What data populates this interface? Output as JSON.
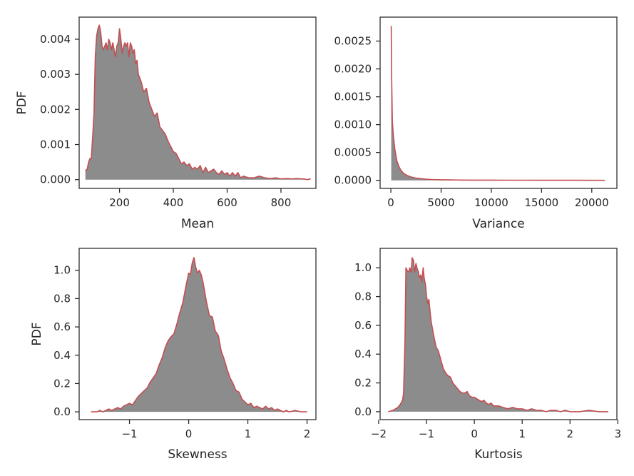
{
  "figure": {
    "colors": {
      "line": "#c44e52",
      "fill": "#8c8c8c",
      "axes": "#262626"
    }
  },
  "chart_data": [
    {
      "type": "area",
      "title": "",
      "xlabel": "Mean",
      "ylabel": "PDF",
      "xlim": [
        50,
        930
      ],
      "ylim": [
        -0.00025,
        0.00463
      ],
      "xticks": [
        200,
        400,
        600,
        800
      ],
      "xtick_labels": [
        "200",
        "400",
        "600",
        "800"
      ],
      "yticks": [
        0.0,
        0.001,
        0.002,
        0.003,
        0.004
      ],
      "ytick_labels": [
        "0.000",
        "0.001",
        "0.002",
        "0.003",
        "0.004"
      ],
      "x": [
        73,
        80,
        85,
        90,
        95,
        100,
        105,
        110,
        115,
        120,
        125,
        130,
        135,
        140,
        145,
        150,
        155,
        160,
        165,
        170,
        175,
        180,
        185,
        190,
        195,
        200,
        205,
        210,
        215,
        220,
        225,
        230,
        235,
        240,
        245,
        250,
        255,
        260,
        265,
        270,
        275,
        280,
        290,
        300,
        310,
        320,
        330,
        340,
        350,
        360,
        370,
        380,
        390,
        400,
        410,
        420,
        430,
        440,
        450,
        460,
        470,
        480,
        490,
        500,
        510,
        520,
        530,
        540,
        550,
        560,
        570,
        580,
        590,
        600,
        610,
        620,
        630,
        640,
        650,
        660,
        680,
        700,
        720,
        740,
        760,
        780,
        800,
        820,
        840,
        860,
        880,
        900,
        910
      ],
      "y": [
        0.00025,
        0.0003,
        0.0005,
        0.0006,
        0.0006,
        0.0012,
        0.0019,
        0.0035,
        0.0041,
        0.0043,
        0.0044,
        0.0042,
        0.0038,
        0.0037,
        0.0038,
        0.0039,
        0.0037,
        0.004,
        0.0039,
        0.0037,
        0.0039,
        0.0037,
        0.0035,
        0.0038,
        0.0039,
        0.0043,
        0.004,
        0.0036,
        0.0038,
        0.0039,
        0.0038,
        0.0039,
        0.0035,
        0.0039,
        0.0038,
        0.0036,
        0.0037,
        0.0033,
        0.0034,
        0.003,
        0.0029,
        0.0028,
        0.0025,
        0.0026,
        0.0022,
        0.002,
        0.0018,
        0.0019,
        0.0015,
        0.0014,
        0.0013,
        0.0011,
        0.00095,
        0.0008,
        0.00075,
        0.0006,
        0.00045,
        0.0005,
        0.0004,
        0.00045,
        0.0003,
        0.00035,
        0.0003,
        0.0004,
        0.0002,
        0.00035,
        0.0002,
        0.00025,
        0.0003,
        0.0002,
        0.00015,
        0.00025,
        0.00015,
        0.0002,
        0.0001,
        0.0002,
        0.0001,
        0.0002,
        5e-05,
        0.0001,
        5e-05,
        5e-05,
        0.0001,
        5e-05,
        3e-05,
        5e-05,
        2e-05,
        3e-05,
        2e-05,
        3e-05,
        2e-05,
        0.0,
        3e-05
      ]
    },
    {
      "type": "area",
      "title": "",
      "xlabel": "Variance",
      "ylabel": "",
      "xlim": [
        -1070,
        22500
      ],
      "ylim": [
        -0.000145,
        0.00293
      ],
      "xticks": [
        0,
        5000,
        10000,
        15000,
        20000
      ],
      "xtick_labels": [
        "0",
        "5000",
        "10000",
        "15000",
        "20000"
      ],
      "yticks": [
        0.0,
        0.0005,
        0.001,
        0.0015,
        0.002,
        0.0025
      ],
      "ytick_labels": [
        "0.0000",
        "0.0005",
        "0.0010",
        "0.0015",
        "0.0020",
        "0.0025"
      ],
      "x": [
        35,
        75,
        150,
        250,
        400,
        600,
        800,
        1000,
        1300,
        1600,
        2000,
        2500,
        3000,
        3500,
        4000,
        5000,
        6000,
        7000,
        8000,
        10000,
        12000,
        15000,
        18000,
        21300
      ],
      "y": [
        0.00277,
        0.0019,
        0.00105,
        0.0008,
        0.00055,
        0.00035,
        0.00025,
        0.00018,
        0.00012,
        9e-05,
        6e-05,
        4e-05,
        3e-05,
        2e-05,
        1.5e-05,
        1e-05,
        7e-06,
        5e-06,
        4e-06,
        3e-06,
        2e-06,
        1e-06,
        1e-06,
        0.0
      ]
    },
    {
      "type": "area",
      "title": "",
      "xlabel": "Skewness",
      "ylabel": "PDF",
      "xlim": [
        -1.85,
        2.15
      ],
      "ylim": [
        -0.055,
        1.155
      ],
      "xticks": [
        -1,
        0,
        1,
        2
      ],
      "xtick_labels": [
        "−1",
        "0",
        "1",
        "2"
      ],
      "yticks": [
        0.0,
        0.2,
        0.4,
        0.6,
        0.8,
        1.0
      ],
      "ytick_labels": [
        "0.0",
        "0.2",
        "0.4",
        "0.6",
        "0.8",
        "1.0"
      ],
      "x": [
        -1.65,
        -1.55,
        -1.5,
        -1.45,
        -1.4,
        -1.35,
        -1.3,
        -1.25,
        -1.2,
        -1.15,
        -1.1,
        -1.05,
        -1.0,
        -0.95,
        -0.9,
        -0.85,
        -0.8,
        -0.75,
        -0.7,
        -0.65,
        -0.6,
        -0.55,
        -0.5,
        -0.45,
        -0.4,
        -0.35,
        -0.3,
        -0.25,
        -0.2,
        -0.15,
        -0.1,
        -0.05,
        0.0,
        0.03,
        0.06,
        0.09,
        0.12,
        0.15,
        0.18,
        0.21,
        0.24,
        0.27,
        0.3,
        0.35,
        0.4,
        0.45,
        0.5,
        0.55,
        0.6,
        0.65,
        0.7,
        0.75,
        0.8,
        0.85,
        0.9,
        0.95,
        1.0,
        1.05,
        1.1,
        1.15,
        1.2,
        1.25,
        1.3,
        1.35,
        1.4,
        1.45,
        1.5,
        1.55,
        1.6,
        1.65,
        1.7,
        1.8,
        1.9,
        2.0
      ],
      "y": [
        0.0,
        0.0,
        0.01,
        0.0,
        0.01,
        0.02,
        0.01,
        0.02,
        0.03,
        0.02,
        0.04,
        0.05,
        0.06,
        0.05,
        0.08,
        0.11,
        0.13,
        0.15,
        0.17,
        0.21,
        0.24,
        0.27,
        0.33,
        0.38,
        0.45,
        0.5,
        0.53,
        0.55,
        0.62,
        0.7,
        0.77,
        0.88,
        0.98,
        0.97,
        1.05,
        1.09,
        1.02,
        0.98,
        1.0,
        0.97,
        0.92,
        0.85,
        0.78,
        0.68,
        0.67,
        0.57,
        0.54,
        0.43,
        0.37,
        0.3,
        0.24,
        0.2,
        0.15,
        0.14,
        0.09,
        0.07,
        0.05,
        0.06,
        0.03,
        0.04,
        0.03,
        0.02,
        0.04,
        0.02,
        0.03,
        0.01,
        0.02,
        0.01,
        0.0,
        0.01,
        0.0,
        0.01,
        0.0,
        0.0
      ]
    },
    {
      "type": "area",
      "title": "",
      "xlabel": "Kurtosis",
      "ylabel": "",
      "xlim": [
        -1.97,
        2.98
      ],
      "ylim": [
        -0.055,
        1.135
      ],
      "xticks": [
        -2,
        -1,
        0,
        1,
        2,
        3
      ],
      "xtick_labels": [
        "−2",
        "−1",
        "0",
        "1",
        "2",
        "3"
      ],
      "yticks": [
        0.0,
        0.2,
        0.4,
        0.6,
        0.8,
        1.0
      ],
      "ytick_labels": [
        "0.0",
        "0.2",
        "0.4",
        "0.6",
        "0.8",
        "1.0"
      ],
      "x": [
        -1.8,
        -1.7,
        -1.6,
        -1.55,
        -1.5,
        -1.48,
        -1.45,
        -1.43,
        -1.4,
        -1.37,
        -1.35,
        -1.32,
        -1.3,
        -1.27,
        -1.25,
        -1.22,
        -1.2,
        -1.17,
        -1.15,
        -1.12,
        -1.1,
        -1.07,
        -1.05,
        -1.02,
        -1.0,
        -0.97,
        -0.95,
        -0.92,
        -0.9,
        -0.85,
        -0.8,
        -0.75,
        -0.7,
        -0.65,
        -0.6,
        -0.55,
        -0.5,
        -0.45,
        -0.4,
        -0.35,
        -0.3,
        -0.25,
        -0.2,
        -0.15,
        -0.1,
        -0.05,
        0.0,
        0.05,
        0.1,
        0.15,
        0.2,
        0.25,
        0.3,
        0.35,
        0.4,
        0.5,
        0.6,
        0.7,
        0.8,
        0.9,
        1.0,
        1.1,
        1.2,
        1.3,
        1.4,
        1.5,
        1.6,
        1.7,
        1.8,
        1.9,
        2.0,
        2.2,
        2.4,
        2.6,
        2.8
      ],
      "y": [
        0.0,
        0.01,
        0.03,
        0.05,
        0.08,
        0.13,
        0.5,
        1.0,
        0.98,
        0.97,
        1.0,
        0.97,
        1.07,
        1.05,
        0.97,
        1.03,
        1.0,
        0.97,
        0.93,
        0.95,
        0.9,
        1.0,
        0.93,
        0.88,
        0.8,
        0.75,
        0.78,
        0.68,
        0.62,
        0.53,
        0.45,
        0.42,
        0.36,
        0.3,
        0.27,
        0.25,
        0.24,
        0.2,
        0.18,
        0.16,
        0.14,
        0.13,
        0.13,
        0.14,
        0.11,
        0.1,
        0.1,
        0.09,
        0.08,
        0.07,
        0.08,
        0.06,
        0.05,
        0.06,
        0.04,
        0.04,
        0.03,
        0.02,
        0.03,
        0.02,
        0.02,
        0.01,
        0.02,
        0.01,
        0.01,
        0.0,
        0.01,
        0.01,
        0.0,
        0.01,
        0.0,
        0.0,
        0.01,
        0.0,
        0.0
      ]
    }
  ]
}
